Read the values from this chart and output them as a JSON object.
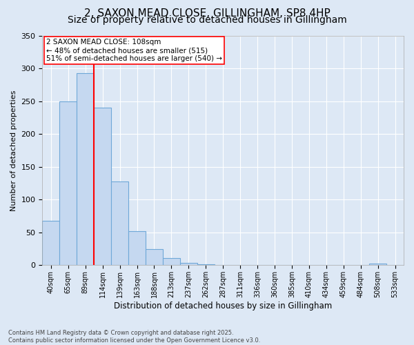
{
  "title": "2, SAXON MEAD CLOSE, GILLINGHAM, SP8 4HP",
  "subtitle": "Size of property relative to detached houses in Gillingham",
  "xlabel": "Distribution of detached houses by size in Gillingham",
  "ylabel": "Number of detached properties",
  "categories": [
    "40sqm",
    "65sqm",
    "89sqm",
    "114sqm",
    "139sqm",
    "163sqm",
    "188sqm",
    "213sqm",
    "237sqm",
    "262sqm",
    "287sqm",
    "311sqm",
    "336sqm",
    "360sqm",
    "385sqm",
    "410sqm",
    "434sqm",
    "459sqm",
    "484sqm",
    "508sqm",
    "533sqm"
  ],
  "values": [
    68,
    250,
    293,
    240,
    128,
    52,
    25,
    11,
    4,
    1,
    0,
    0,
    0,
    0,
    0,
    0,
    0,
    0,
    0,
    3,
    0
  ],
  "bar_color": "#c5d8f0",
  "bar_edge_color": "#6fa8d8",
  "vline_x": 2.5,
  "vline_color": "red",
  "annotation_text": "2 SAXON MEAD CLOSE: 108sqm\n← 48% of detached houses are smaller (515)\n51% of semi-detached houses are larger (540) →",
  "annotation_box_color": "white",
  "annotation_box_edge": "red",
  "background_color": "#dde8f5",
  "plot_bg_color": "#dde8f5",
  "footer": "Contains HM Land Registry data © Crown copyright and database right 2025.\nContains public sector information licensed under the Open Government Licence v3.0.",
  "ylim": [
    0,
    350
  ],
  "title_fontsize": 11,
  "subtitle_fontsize": 10
}
